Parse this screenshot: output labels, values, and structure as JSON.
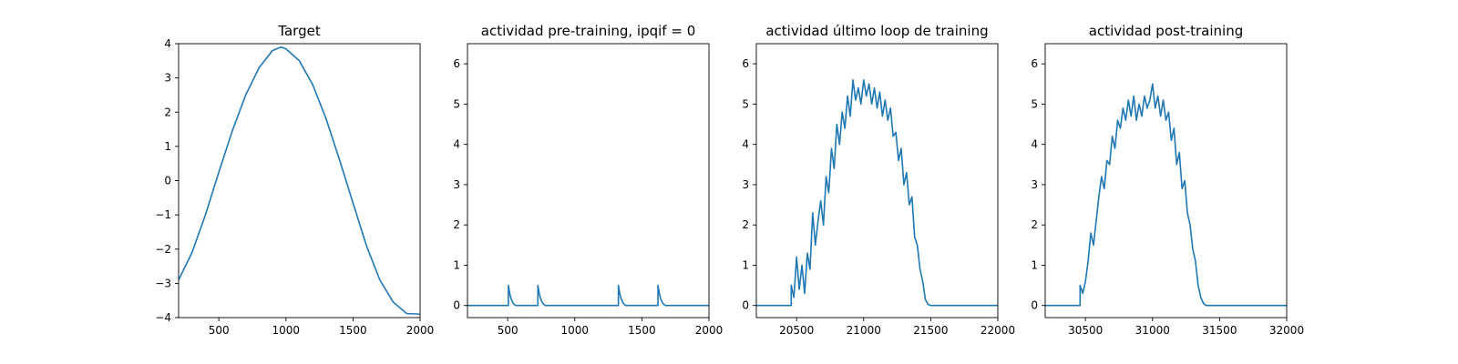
{
  "chart_data": [
    {
      "type": "line",
      "title": "Target",
      "xlim": [
        200,
        2000
      ],
      "ylim": [
        -4,
        4
      ],
      "xticks": [
        500,
        1000,
        1500,
        2000
      ],
      "xtick_labels": [
        "500",
        "1000",
        "1500",
        "2000"
      ],
      "yticks": [
        -4,
        -3,
        -2,
        -1,
        0,
        1,
        2,
        3,
        4
      ],
      "ytick_labels": [
        "−4",
        "−3",
        "−2",
        "−1",
        "0",
        "1",
        "2",
        "3",
        "4"
      ],
      "grid": false,
      "series": [
        {
          "color": "#1f77b4",
          "x": [
            200,
            300,
            400,
            500,
            600,
            700,
            800,
            900,
            963,
            1000,
            1100,
            1200,
            1300,
            1400,
            1500,
            1600,
            1700,
            1800,
            1900,
            2000
          ],
          "y": [
            -2.9,
            -2.1,
            -1.0,
            0.25,
            1.45,
            2.5,
            3.3,
            3.8,
            3.9,
            3.85,
            3.5,
            2.8,
            1.8,
            0.6,
            -0.65,
            -1.9,
            -2.9,
            -3.55,
            -3.88,
            -3.9
          ]
        }
      ]
    },
    {
      "type": "line",
      "title": "actividad pre-training, ipqif = 0",
      "xlim": [
        200,
        2000
      ],
      "ylim": [
        -0.3,
        6.5
      ],
      "xticks": [
        500,
        1000,
        1500,
        2000
      ],
      "xtick_labels": [
        "500",
        "1000",
        "1500",
        "2000"
      ],
      "yticks": [
        0,
        1,
        2,
        3,
        4,
        5,
        6
      ],
      "ytick_labels": [
        "0",
        "1",
        "2",
        "3",
        "4",
        "5",
        "6"
      ],
      "grid": false,
      "series": [
        {
          "color": "#1f77b4",
          "x": [
            200,
            505,
            505,
            515,
            525,
            535,
            545,
            560,
            725,
            725,
            735,
            745,
            755,
            765,
            780,
            1325,
            1325,
            1335,
            1345,
            1355,
            1365,
            1380,
            1620,
            1620,
            1630,
            1640,
            1650,
            1660,
            1675,
            2000
          ],
          "y": [
            0,
            0,
            0.5,
            0.3,
            0.17,
            0.09,
            0.04,
            0,
            0,
            0.5,
            0.3,
            0.17,
            0.09,
            0.04,
            0,
            0,
            0.5,
            0.3,
            0.17,
            0.09,
            0.04,
            0,
            0,
            0.5,
            0.3,
            0.17,
            0.09,
            0.04,
            0,
            0
          ]
        }
      ]
    },
    {
      "type": "line",
      "title": "actividad último loop de training",
      "xlim": [
        20200,
        22000
      ],
      "ylim": [
        -0.3,
        6.5
      ],
      "xticks": [
        20500,
        21000,
        21500,
        22000
      ],
      "xtick_labels": [
        "20500",
        "21000",
        "21500",
        "22000"
      ],
      "yticks": [
        0,
        1,
        2,
        3,
        4,
        5,
        6
      ],
      "ytick_labels": [
        "0",
        "1",
        "2",
        "3",
        "4",
        "5",
        "6"
      ],
      "grid": false,
      "series": [
        {
          "color": "#1f77b4",
          "x": [
            20200,
            20460,
            20460,
            20480,
            20500,
            20520,
            20540,
            20560,
            20580,
            20600,
            20620,
            20640,
            20660,
            20680,
            20700,
            20720,
            20740,
            20760,
            20780,
            20800,
            20820,
            20840,
            20860,
            20880,
            20900,
            20920,
            20940,
            20960,
            20980,
            21000,
            21020,
            21040,
            21060,
            21080,
            21100,
            21120,
            21140,
            21160,
            21180,
            21200,
            21220,
            21240,
            21260,
            21280,
            21300,
            21320,
            21340,
            21360,
            21380,
            21400,
            21420,
            21440,
            21460,
            21480,
            21500,
            21600,
            21800,
            22000
          ],
          "y": [
            0,
            0,
            0.5,
            0.2,
            1.2,
            0.4,
            1.0,
            0.3,
            1.3,
            0.9,
            2.3,
            1.5,
            2.1,
            2.6,
            2.0,
            3.2,
            2.8,
            3.9,
            3.4,
            4.5,
            4.0,
            4.8,
            4.4,
            5.2,
            4.7,
            5.6,
            5.1,
            5.4,
            5.0,
            5.6,
            5.2,
            5.5,
            5.0,
            5.4,
            4.9,
            5.3,
            4.7,
            5.1,
            4.6,
            4.9,
            4.2,
            4.3,
            3.6,
            3.9,
            3.0,
            3.3,
            2.5,
            2.7,
            1.7,
            1.5,
            0.9,
            0.6,
            0.15,
            0.03,
            0,
            0,
            0,
            0
          ]
        }
      ]
    },
    {
      "type": "line",
      "title": "actividad post-training",
      "xlim": [
        30200,
        32000
      ],
      "ylim": [
        -0.3,
        6.5
      ],
      "xticks": [
        30500,
        31000,
        31500,
        32000
      ],
      "xtick_labels": [
        "30500",
        "31000",
        "31500",
        "32000"
      ],
      "yticks": [
        0,
        1,
        2,
        3,
        4,
        5,
        6
      ],
      "ytick_labels": [
        "0",
        "1",
        "2",
        "3",
        "4",
        "5",
        "6"
      ],
      "grid": false,
      "series": [
        {
          "color": "#1f77b4",
          "x": [
            30200,
            30460,
            30460,
            30480,
            30500,
            30520,
            30540,
            30560,
            30580,
            30600,
            30620,
            30640,
            30660,
            30680,
            30700,
            30720,
            30740,
            30760,
            30780,
            30800,
            30820,
            30840,
            30860,
            30880,
            30900,
            30920,
            30940,
            30960,
            30980,
            31000,
            31020,
            31040,
            31060,
            31080,
            31100,
            31120,
            31140,
            31160,
            31180,
            31200,
            31220,
            31240,
            31260,
            31280,
            31300,
            31320,
            31340,
            31360,
            31380,
            31400,
            31500,
            31700,
            32000
          ],
          "y": [
            0,
            0,
            0.5,
            0.3,
            0.6,
            1.1,
            1.8,
            1.5,
            2.1,
            2.7,
            3.2,
            2.9,
            3.6,
            3.5,
            4.2,
            3.9,
            4.6,
            4.4,
            4.9,
            4.6,
            5.1,
            4.7,
            5.2,
            4.6,
            5.0,
            4.7,
            5.2,
            4.9,
            5.1,
            5.5,
            4.9,
            5.2,
            4.7,
            5.1,
            4.6,
            4.8,
            4.1,
            4.4,
            3.5,
            3.8,
            2.9,
            3.1,
            2.3,
            2.0,
            1.4,
            1.1,
            0.5,
            0.2,
            0.05,
            0,
            0,
            0,
            0
          ]
        }
      ]
    }
  ]
}
